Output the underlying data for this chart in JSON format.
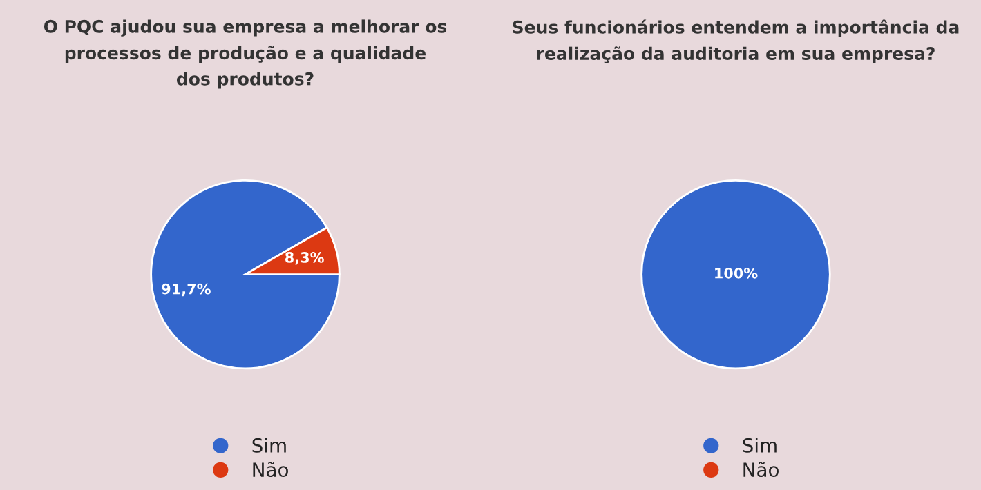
{
  "chart_data": [
    {
      "type": "pie",
      "title": "O PQC ajudou sua empresa a melhorar os\nprocessos de produção e a qualidade\ndos produtos?",
      "categories": [
        "Sim",
        "Não"
      ],
      "values": [
        91.7,
        8.3
      ],
      "colors": [
        "#3366cc",
        "#dc3912"
      ],
      "value_labels": [
        "91,7%",
        "8,3%"
      ],
      "legend": "bottom"
    },
    {
      "type": "pie",
      "title": "Seus funcionários entendem a importância da\nrealização da auditoria em sua empresa?",
      "categories": [
        "Sim",
        "Não"
      ],
      "values": [
        100,
        0
      ],
      "colors": [
        "#3366cc",
        "#dc3912"
      ],
      "value_labels": [
        "100%",
        null
      ],
      "legend": "bottom"
    }
  ]
}
